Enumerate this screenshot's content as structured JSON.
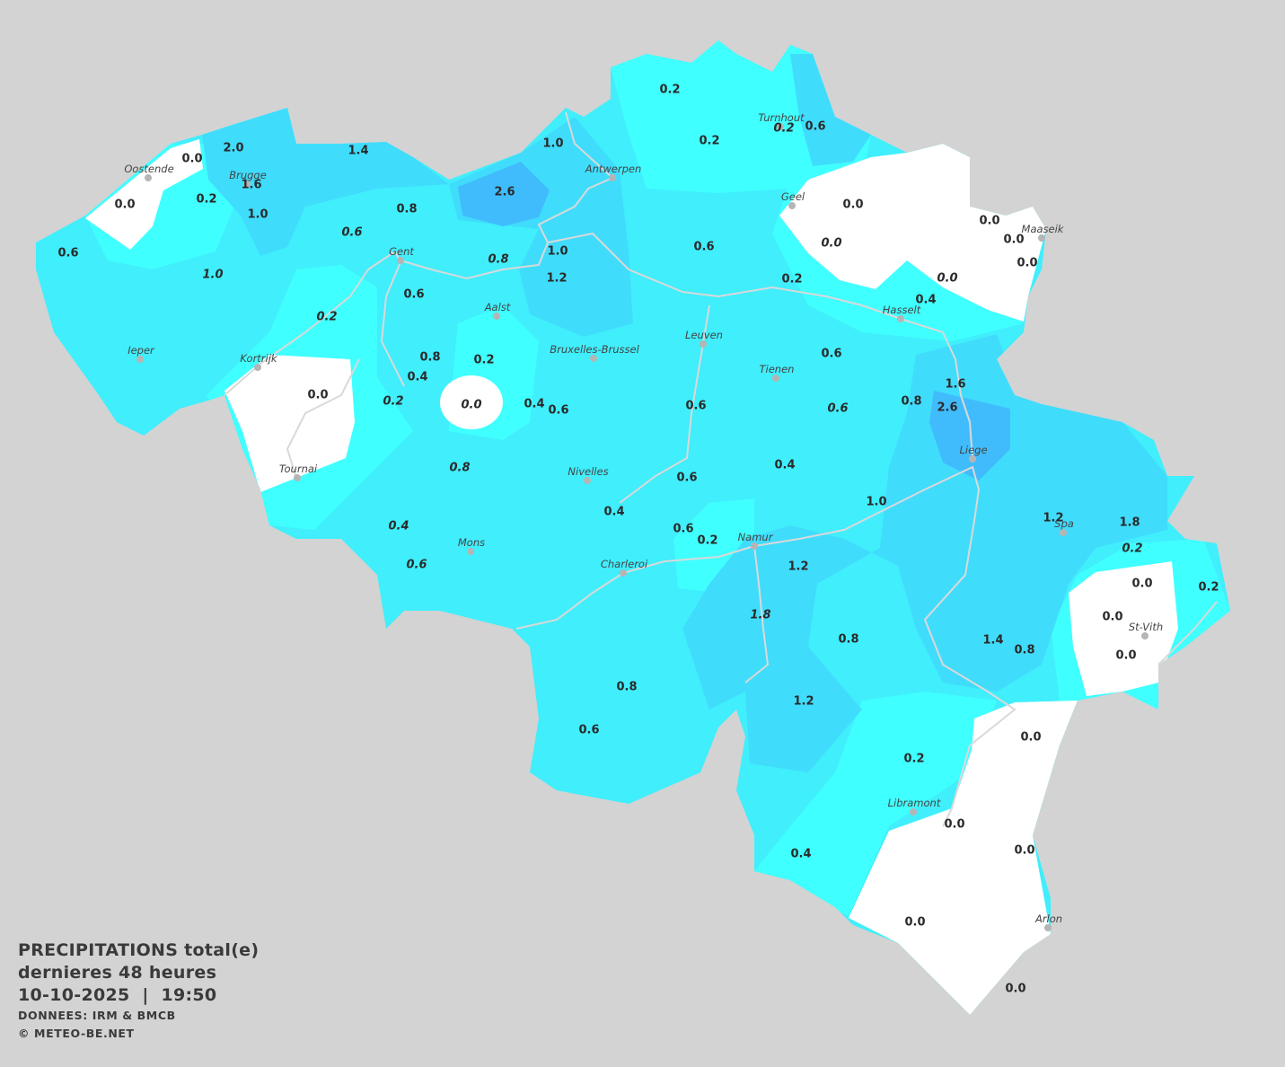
{
  "legend": {
    "title": "PRECIPITATIONS total(e)",
    "period": "dernieres 48 heures",
    "datetime": "10-10-2025  |  19:50",
    "source": "DONNEES: IRM & BMCB",
    "copyright": "© METEO-BE.NET"
  },
  "colors": {
    "background": "#d3d3d3",
    "level_0_0": "#ffffff",
    "level_0_2": "#40ffff",
    "level_0_4_0_8": "#40eefc",
    "level_1_0_1_8": "#40dcfc",
    "level_2_0_plus": "#40bcfc",
    "rivers": "#d9d9d9"
  },
  "units": "mm",
  "cities": [
    "Oostende",
    "Brugge",
    "Antwerpen",
    "Turnhout",
    "Geel",
    "Maaseik",
    "Gent",
    "Aalst",
    "Hasselt",
    "Leuven",
    "Bruxelles-Brussel",
    "Tienen",
    "Ieper",
    "Kortrijk",
    "Liege",
    "Tournai",
    "Nivelles",
    "Spa",
    "Namur",
    "Mons",
    "Charleroi",
    "St-Vith",
    "Libramont",
    "Arlon"
  ],
  "values": [
    {
      "v": "0.2"
    },
    {
      "v": "0.2"
    },
    {
      "v": "0.2",
      "italic": true
    },
    {
      "v": "0.6"
    },
    {
      "v": "1.0"
    },
    {
      "v": "2.0"
    },
    {
      "v": "0.0"
    },
    {
      "v": "1.4"
    },
    {
      "v": "1.6"
    },
    {
      "v": "0.2"
    },
    {
      "v": "0.0"
    },
    {
      "v": "1.0"
    },
    {
      "v": "0.8"
    },
    {
      "v": "2.6"
    },
    {
      "v": "0.0"
    },
    {
      "v": "0.0"
    },
    {
      "v": "0.0"
    },
    {
      "v": "0.0",
      "italic": true
    },
    {
      "v": "0.0"
    },
    {
      "v": "0.0",
      "italic": true
    },
    {
      "v": "0.6"
    },
    {
      "v": "0.6",
      "italic": true
    },
    {
      "v": "1.0",
      "italic": true
    },
    {
      "v": "0.8",
      "italic": true
    },
    {
      "v": "1.0"
    },
    {
      "v": "1.2"
    },
    {
      "v": "0.6"
    },
    {
      "v": "0.2"
    },
    {
      "v": "0.4"
    },
    {
      "v": "0.2",
      "italic": true
    },
    {
      "v": "0.6"
    },
    {
      "v": "0.8"
    },
    {
      "v": "0.2"
    },
    {
      "v": "0.4"
    },
    {
      "v": "0.0"
    },
    {
      "v": "0.2",
      "italic": true
    },
    {
      "v": "0.0",
      "italic": true
    },
    {
      "v": "0.4"
    },
    {
      "v": "0.6"
    },
    {
      "v": "0.6"
    },
    {
      "v": "0.6"
    },
    {
      "v": "0.6",
      "italic": true
    },
    {
      "v": "0.8"
    },
    {
      "v": "1.6"
    },
    {
      "v": "2.6"
    },
    {
      "v": "0.8",
      "italic": true
    },
    {
      "v": "0.6"
    },
    {
      "v": "0.4"
    },
    {
      "v": "1.0"
    },
    {
      "v": "0.4"
    },
    {
      "v": "0.4",
      "italic": true
    },
    {
      "v": "0.6"
    },
    {
      "v": "0.2"
    },
    {
      "v": "1.2"
    },
    {
      "v": "1.8"
    },
    {
      "v": "0.2",
      "italic": true
    },
    {
      "v": "0.6",
      "italic": true
    },
    {
      "v": "1.2"
    },
    {
      "v": "0.0"
    },
    {
      "v": "0.2"
    },
    {
      "v": "0.0"
    },
    {
      "v": "1.8",
      "italic": true
    },
    {
      "v": "0.8"
    },
    {
      "v": "1.4"
    },
    {
      "v": "0.8"
    },
    {
      "v": "0.0"
    },
    {
      "v": "0.8"
    },
    {
      "v": "1.2"
    },
    {
      "v": "0.6"
    },
    {
      "v": "0.0"
    },
    {
      "v": "0.2"
    },
    {
      "v": "0.0"
    },
    {
      "v": "0.0"
    },
    {
      "v": "0.4"
    },
    {
      "v": "0.0"
    },
    {
      "v": "0.0"
    }
  ]
}
